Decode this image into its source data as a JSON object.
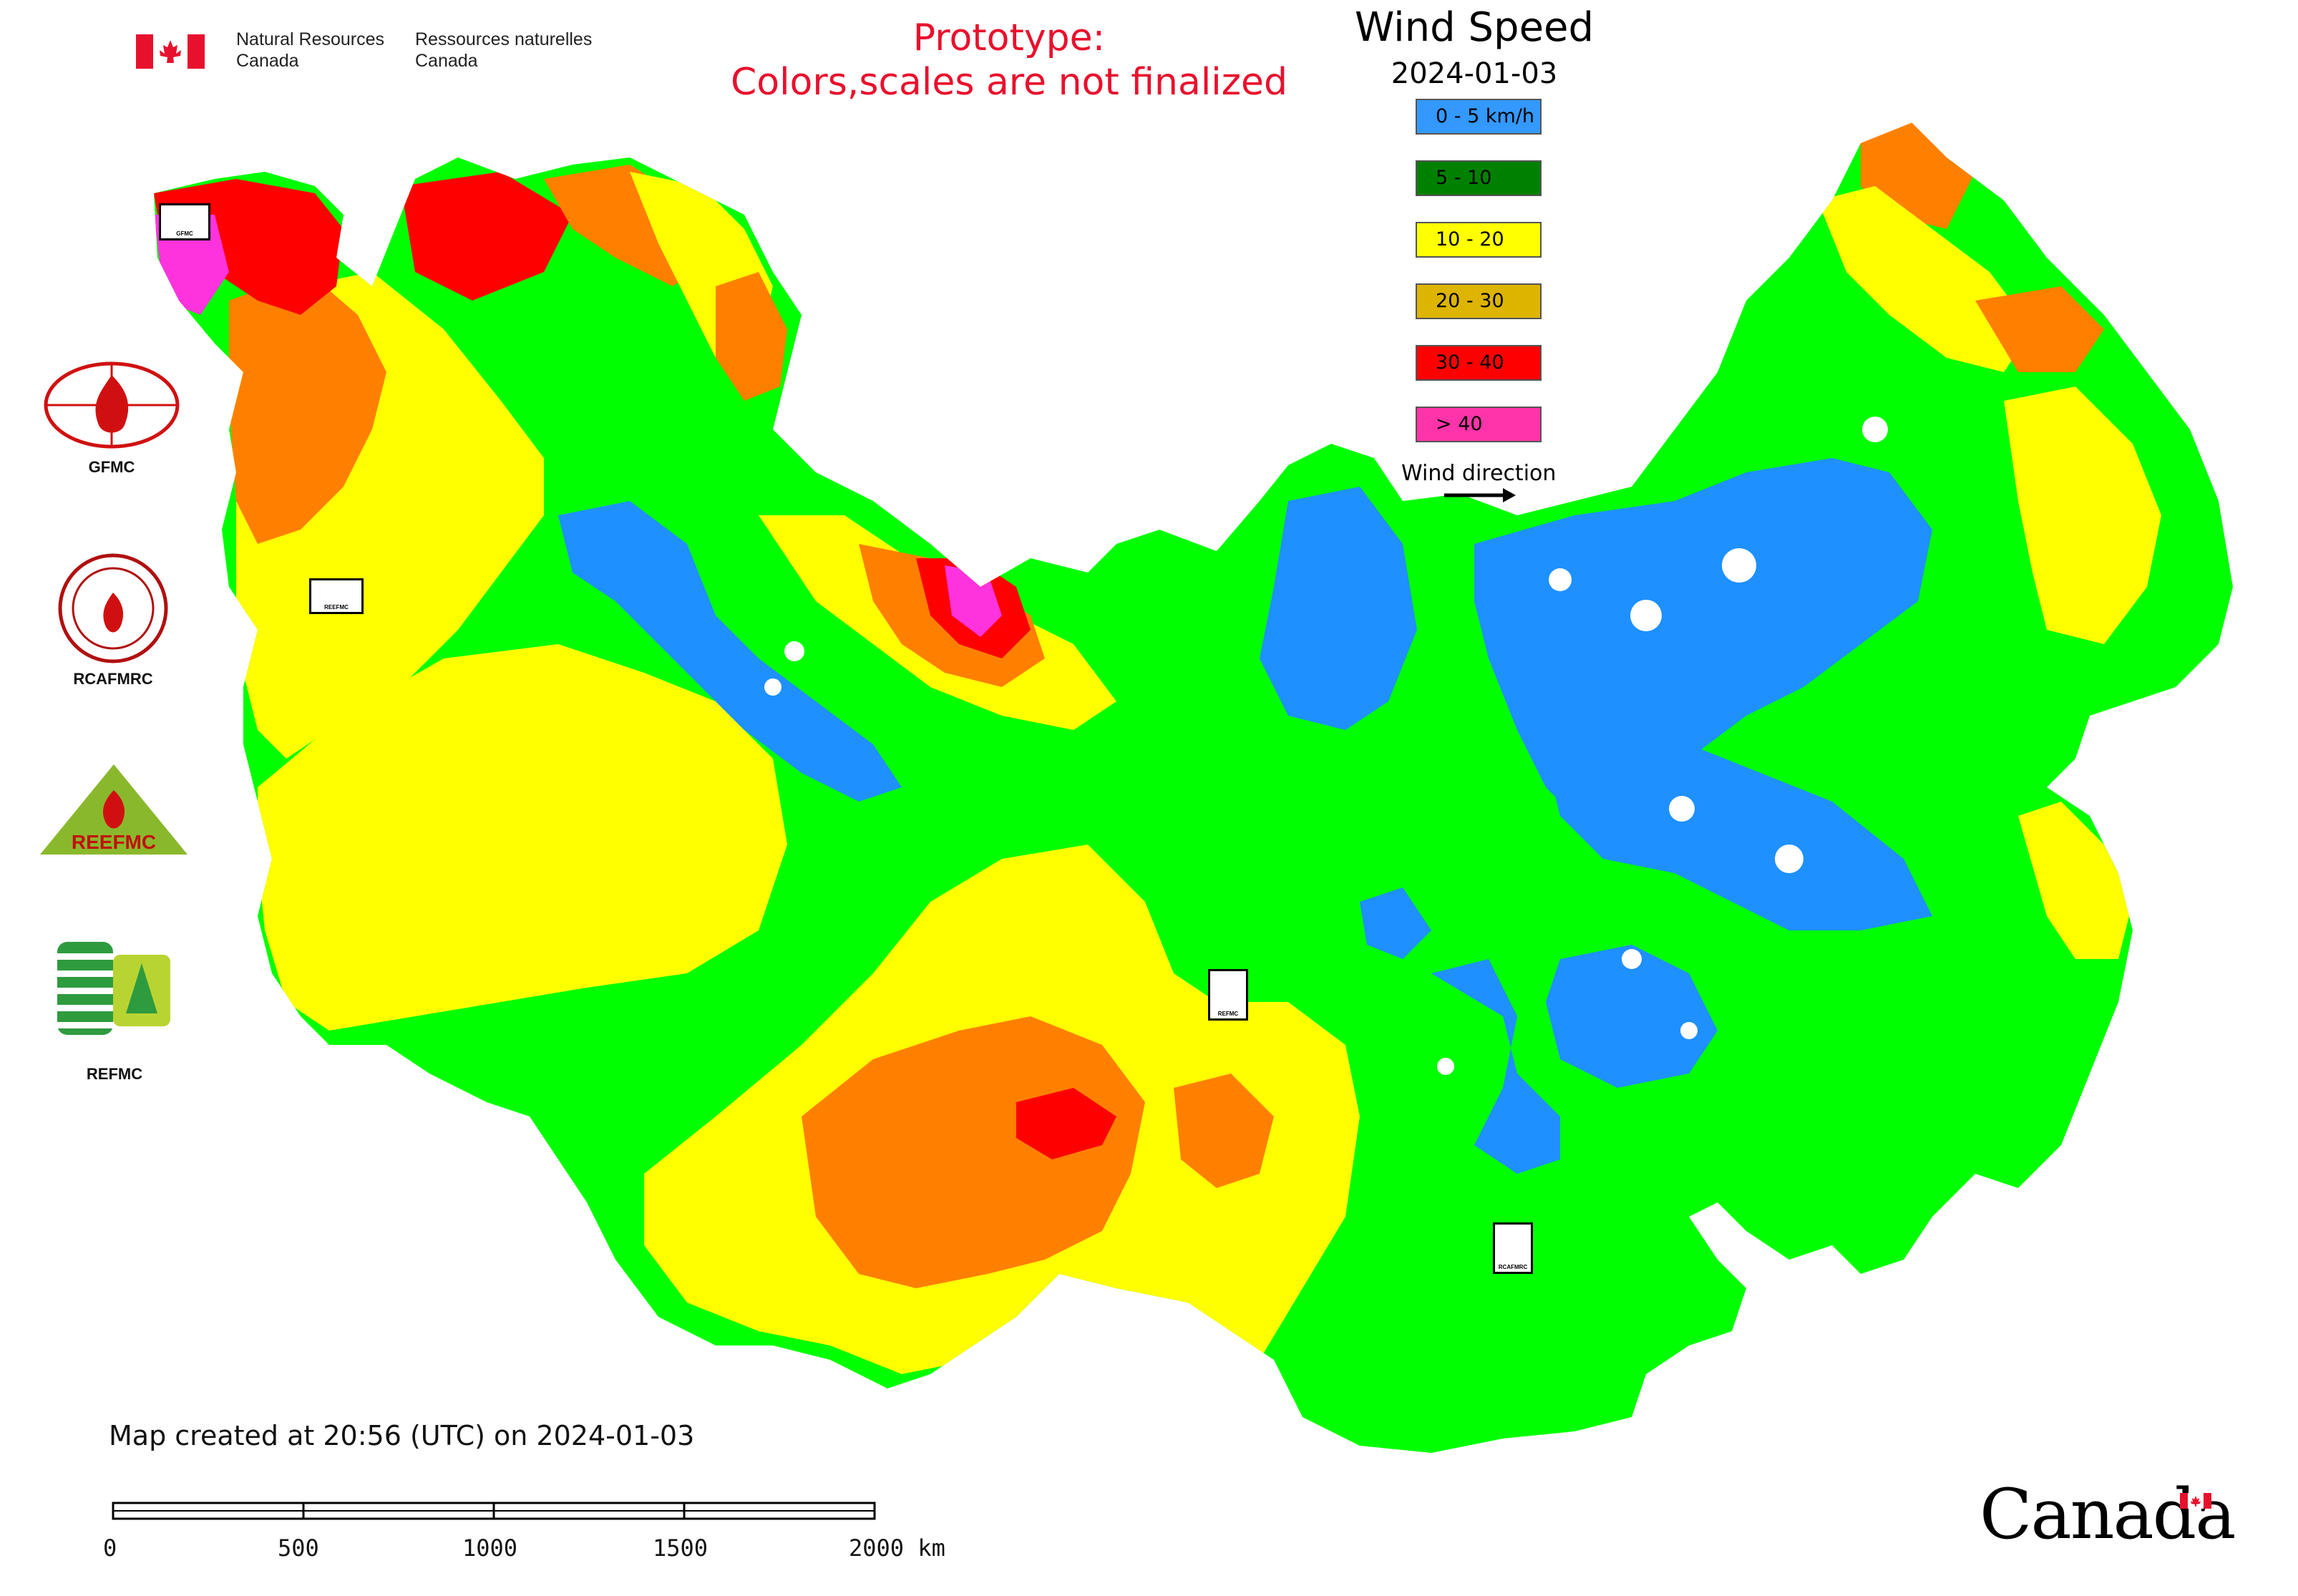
{
  "header": {
    "gov_en_line1": "Natural Resources",
    "gov_en_line2": "Canada",
    "gov_fr_line1": "Ressources naturelles",
    "gov_fr_line2": "Canada",
    "prototype_line1": "Prototype:",
    "prototype_line2": "Colors,scales are not finalized"
  },
  "legend": {
    "title": "Wind Speed",
    "date": "2024-01-03",
    "items": [
      {
        "label": "0 - 5 km/h",
        "color": "#3399ff"
      },
      {
        "label": "5 - 10",
        "color": "#008000"
      },
      {
        "label": "10 - 20",
        "color": "#ffff00"
      },
      {
        "label": "20 - 30",
        "color": "#ddb400"
      },
      {
        "label": "30 - 40",
        "color": "#ff0000"
      },
      {
        "label": "> 40",
        "color": "#ff33aa"
      }
    ],
    "wind_direction": "Wind direction"
  },
  "organizations": [
    {
      "label": "GFMC"
    },
    {
      "label": "RCAFMRC"
    },
    {
      "label": "REFMC"
    }
  ],
  "logo_text": {
    "reefmc": "REEFMC",
    "marker_gfmc": "GFMC",
    "marker_reefmc": "REEFMC",
    "marker_refmc": "REFMC",
    "marker_rcafmrc": "RCAFMRC"
  },
  "map_colors": {
    "calm": "#1e90ff",
    "light": "#00ff00",
    "moderate": "#ffff00",
    "fresh": "#ff8000",
    "strong": "#ff0000",
    "gale": "#ff33dd"
  },
  "footer": {
    "created": "Map created at 20:56 (UTC) on 2024-01-03",
    "scale_labels": [
      "0",
      "500",
      "1000",
      "1500",
      "2000 km"
    ],
    "wordmark": "Canada"
  }
}
